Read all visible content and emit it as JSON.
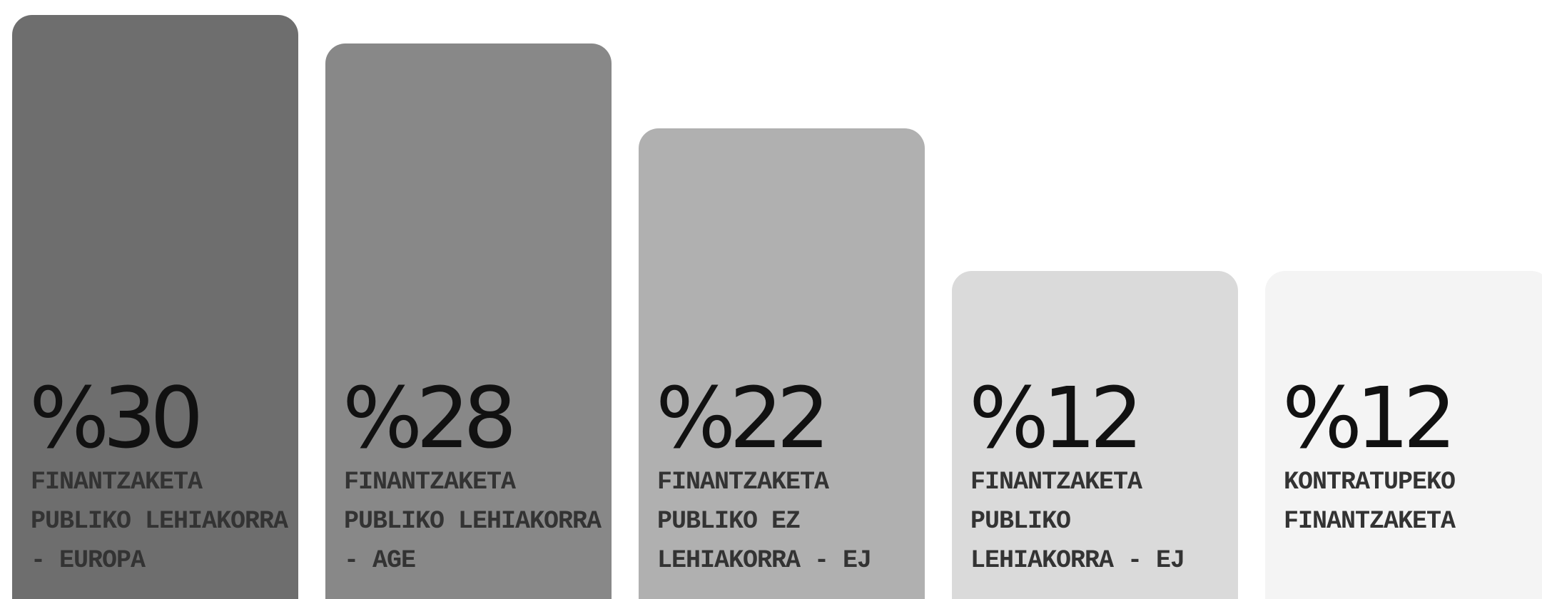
{
  "chart_data": {
    "type": "bar",
    "categories": [
      "FINANTZAKETA\nPUBLIKO LEHIAKORRA\n- EUROPA",
      "FINANTZAKETA\nPUBLIKO LEHIAKORRA\n- AGE",
      "FINANTZAKETA\nPUBLIKO EZ\nLEHIAKORRA - EJ",
      "FINANTZAKETA\nPUBLIKO\nLEHIAKORRA - EJ",
      "KONTRATUPEKO\nFINANTZAKETA"
    ],
    "values": [
      30,
      28,
      22,
      12,
      12
    ],
    "value_labels": [
      "%30",
      "%28",
      "%22",
      "%12",
      "%12"
    ],
    "colors": [
      "#6e6e6e",
      "#888888",
      "#b0b0b0",
      "#dadada",
      "#f4f4f4"
    ]
  }
}
